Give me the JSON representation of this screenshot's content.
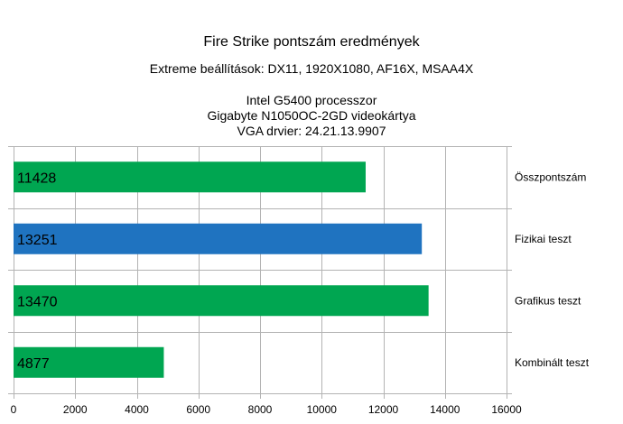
{
  "titles": {
    "title": "Fire Strike pontszám eredmények",
    "subtitle": "Extreme beállítások: DX11, 1920X1080, AF16X, MSAA4X",
    "lines": [
      "Intel G5400 processzor",
      "Gigabyte N1050OC-2GD videokártya",
      "VGA drvier: 24.21.13.9907"
    ]
  },
  "chart_data": {
    "type": "bar",
    "orientation": "horizontal",
    "title": "Fire Strike pontszám eredmények",
    "subtitle": "Extreme beállítások: DX11, 1920X1080, AF16X, MSAA4X",
    "categories": [
      "Összpontszám",
      "Fizikai teszt",
      "Grafikus teszt",
      "Kombinált teszt"
    ],
    "values": [
      11428,
      13251,
      13470,
      4877
    ],
    "bar_colors": [
      "#00a651",
      "#1f73c0",
      "#00a651",
      "#00a651"
    ],
    "xlim": [
      0,
      16000
    ],
    "xticks": [
      0,
      2000,
      4000,
      6000,
      8000,
      10000,
      12000,
      14000,
      16000
    ],
    "xlabel": "",
    "ylabel": "",
    "grid": true,
    "data_labels": true,
    "category_labels_position": "right"
  }
}
